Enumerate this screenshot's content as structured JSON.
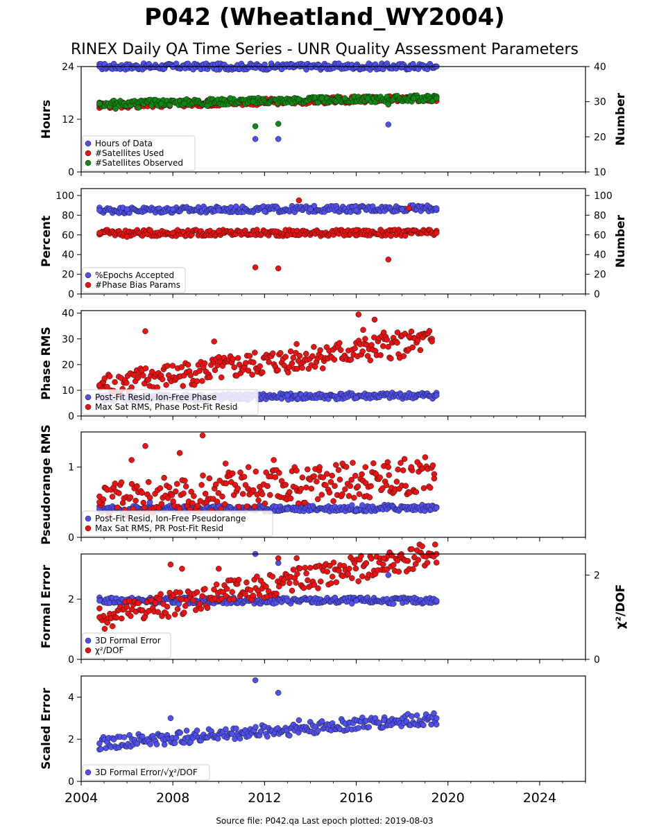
{
  "figure": {
    "title": "P042 (Wheatland_WY2004)",
    "subtitle": "RINEX Daily QA Time Series - UNR Quality Assessment Parameters",
    "footer": "Source file: P042.qa Last epoch plotted: 2019-08-03"
  },
  "colors": {
    "blue": "#5050f0",
    "red": "#ee1111",
    "green": "#118811",
    "edge": "#111111"
  },
  "chart_data": [
    {
      "type": "scatter",
      "id": "hours",
      "ylabel": "Hours",
      "y2label": "Number",
      "xlim": [
        2004.0,
        2026.0
      ],
      "ylim": [
        0,
        24
      ],
      "y2lim": [
        10,
        40
      ],
      "yticks": [
        0,
        12,
        24
      ],
      "y2ticks": [
        10,
        20,
        30,
        40
      ],
      "legend_position": "lower-left",
      "series": [
        {
          "name": "Hours of Data",
          "axis": "left",
          "color": "blue",
          "x": [
            2004.8,
            2006.0,
            2008.0,
            2009.9,
            2011.6,
            2012.6,
            2014.0,
            2016.0,
            2017.4,
            2018.0,
            2019.5
          ],
          "y": [
            24,
            24,
            23.9,
            23.3,
            7.5,
            7.5,
            24,
            24,
            10.8,
            24,
            24
          ]
        },
        {
          "name": "#Satellites Used",
          "axis": "right",
          "color": "red",
          "x": [
            2004.8,
            2005.6,
            2007.6,
            2009.5,
            2011.0,
            2013.0,
            2015.0,
            2017.0,
            2019.5
          ],
          "y": [
            29,
            29.5,
            29.2,
            30,
            30.5,
            30.8,
            30.6,
            31,
            31
          ]
        },
        {
          "name": "#Satellites Observed",
          "axis": "right",
          "color": "green",
          "x": [
            2004.8,
            2005.5,
            2006.5,
            2007.5,
            2008.5,
            2009.5,
            2010.5,
            2011.5,
            2011.6,
            2012.6,
            2013.5,
            2014.5,
            2015.5,
            2016.5,
            2017.4,
            2018.5,
            2019.5
          ],
          "y": [
            29.5,
            28,
            28.3,
            29.5,
            29.5,
            28.8,
            31,
            30,
            23,
            23.7,
            30.7,
            31,
            31,
            31,
            29.2,
            31,
            31
          ]
        }
      ]
    },
    {
      "type": "scatter",
      "id": "percent",
      "ylabel": "Percent",
      "y2label": "Number",
      "xlim": [
        2004.0,
        2026.0
      ],
      "ylim": [
        0,
        107
      ],
      "y2lim": [
        0,
        107
      ],
      "yticks": [
        0,
        20,
        40,
        60,
        80,
        100
      ],
      "y2ticks": [
        0,
        20,
        40,
        60,
        80,
        100
      ],
      "legend_position": "lower-left",
      "series": [
        {
          "name": "%Epochs Accepted",
          "axis": "left",
          "color": "blue",
          "x": [
            2004.8,
            2006.0,
            2008.0,
            2010.0,
            2012.0,
            2014.0,
            2016.0,
            2018.0,
            2019.5
          ],
          "y": [
            85,
            86,
            86,
            85,
            84,
            86,
            85,
            86,
            87
          ]
        },
        {
          "name": "#Phase Bias Params",
          "axis": "right",
          "color": "red",
          "x": [
            2004.8,
            2006.0,
            2008.0,
            2010.0,
            2011.6,
            2012.6,
            2013.5,
            2016.0,
            2017.4,
            2018.3,
            2019.5
          ],
          "y": [
            62,
            58,
            62,
            64,
            27,
            26,
            95,
            65,
            35,
            87,
            62
          ]
        }
      ]
    },
    {
      "type": "scatter",
      "id": "phase-rms",
      "ylabel": "Phase RMS",
      "xlim": [
        2004.0,
        2026.0
      ],
      "ylim": [
        0,
        41
      ],
      "yticks": [
        0,
        10,
        20,
        30,
        40
      ],
      "legend_position": "lower-left",
      "series": [
        {
          "name": "Post-Fit Resid, Ion-Free Phase",
          "color": "blue",
          "x": [
            2004.8,
            2007.0,
            2010.0,
            2013.0,
            2016.0,
            2019.5
          ],
          "y": [
            7,
            7,
            7,
            8,
            7,
            8
          ]
        },
        {
          "name": "Max Sat RMS, Phase Post-Fit Resid",
          "color": "red",
          "x": [
            2004.8,
            2006.8,
            2009.8,
            2013.4,
            2016.1,
            2016.3,
            2016.8,
            2017.2,
            2017.8,
            2018.3,
            2019.3
          ],
          "y": [
            12,
            33,
            29,
            28,
            39.5,
            33.5,
            37.5,
            32.5,
            32.5,
            31,
            29
          ]
        }
      ]
    },
    {
      "type": "scatter",
      "id": "pseudorange-rms",
      "ylabel": "Pseudorange RMS",
      "xlim": [
        2004.0,
        2026.0
      ],
      "ylim": [
        0,
        1.5
      ],
      "yticks": [
        0,
        1
      ],
      "legend_position": "lower-left",
      "series": [
        {
          "name": "Post-Fit Resid, Ion-Free Pseudorange",
          "color": "blue",
          "x": [
            2004.8,
            2007.0,
            2010.0,
            2013.0,
            2016.0,
            2019.5
          ],
          "y": [
            0.4,
            0.5,
            0.45,
            0.4,
            0.38,
            0.42
          ]
        },
        {
          "name": "Max Sat RMS, PR Post-Fit Resid",
          "color": "red",
          "x": [
            2004.8,
            2006.2,
            2006.8,
            2008.3,
            2009.3,
            2010.3,
            2011.3,
            2012.4,
            2013.4,
            2014.4,
            2015.4,
            2016.4,
            2017.4,
            2018.4,
            2019.4
          ],
          "y": [
            0.5,
            1.1,
            1.3,
            1.2,
            1.45,
            1.05,
            1.0,
            1.1,
            0.95,
            1.0,
            1.05,
            1.0,
            1.0,
            1.0,
            0.9
          ]
        }
      ]
    },
    {
      "type": "scatter",
      "id": "formal-error",
      "ylabel": "Formal Error",
      "y2label": "χ²/DOF",
      "xlim": [
        2004.0,
        2026.0
      ],
      "ylim": [
        0,
        3.5
      ],
      "y2lim": [
        0,
        2.5
      ],
      "yticks": [
        0,
        2
      ],
      "y2ticks": [
        0,
        2
      ],
      "legend_position": "lower-left",
      "series": [
        {
          "name": "3D Formal Error",
          "axis": "left",
          "color": "blue",
          "x": [
            2004.8,
            2007.0,
            2010.0,
            2011.6,
            2012.6,
            2013.0,
            2016.0,
            2017.4,
            2019.5
          ],
          "y": [
            1.95,
            1.95,
            1.95,
            3.5,
            3.2,
            1.95,
            1.95,
            2.8,
            1.95
          ]
        },
        {
          "name": "χ²/DOF",
          "axis": "right",
          "color": "red",
          "x": [
            2004.8,
            2007.9,
            2008.4,
            2010.0,
            2012.6,
            2013.4,
            2017.2,
            2019.5
          ],
          "y": [
            1.0,
            2.25,
            2.15,
            2.15,
            2.4,
            2.4,
            2.4,
            2.5
          ]
        }
      ]
    },
    {
      "type": "scatter",
      "id": "scaled-error",
      "ylabel": "Scaled Error",
      "xlim": [
        2004.0,
        2026.0
      ],
      "ylim": [
        0,
        5
      ],
      "yticks": [
        0,
        2,
        4
      ],
      "xticks": [
        2004,
        2008,
        2012,
        2016,
        2020,
        2024
      ],
      "legend_position": "lower-left",
      "series": [
        {
          "name": "3D Formal Error/√χ²/DOF",
          "color": "blue",
          "x": [
            2004.8,
            2007.9,
            2011.6,
            2012.6,
            2013.5,
            2017.2,
            2019.5
          ],
          "y": [
            1.8,
            3.0,
            4.8,
            4.2,
            2.9,
            2.9,
            3.0
          ]
        }
      ]
    }
  ]
}
